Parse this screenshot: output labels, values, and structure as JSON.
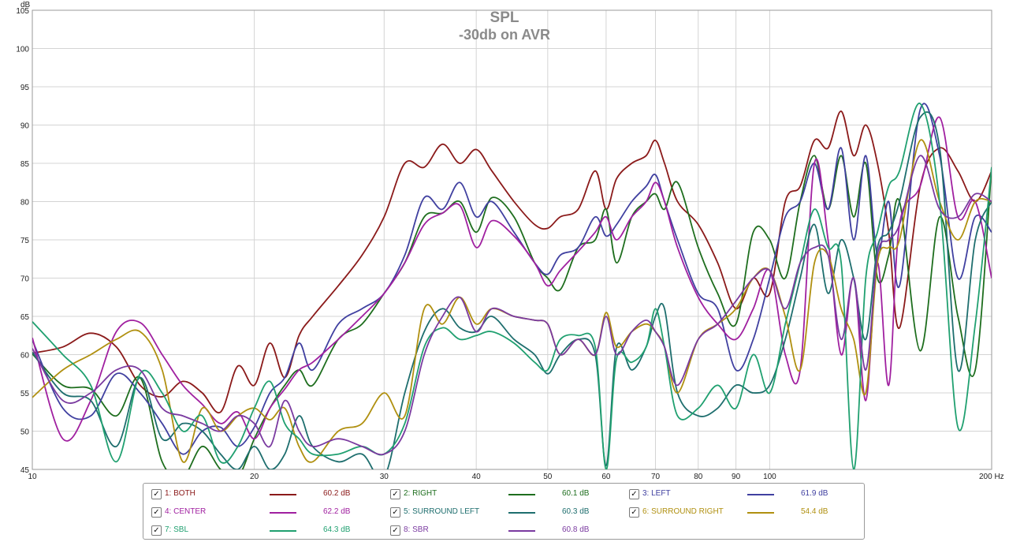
{
  "chart_data": {
    "type": "line",
    "title": "SPL",
    "subtitle": "-30db on AVR",
    "ylabel": "dB",
    "xlabel": "Hz",
    "x_scale": "log",
    "xlim": [
      10,
      200
    ],
    "ylim": [
      45,
      105
    ],
    "grid": true,
    "x_ticks": [
      10,
      20,
      30,
      40,
      50,
      60,
      70,
      80,
      90,
      100,
      200
    ],
    "x_tick_labels": [
      "10",
      "20",
      "30",
      "40",
      "50",
      "60",
      "70",
      "80",
      "90",
      "100",
      "200 Hz"
    ],
    "y_ticks": [
      45,
      50,
      55,
      60,
      65,
      70,
      75,
      80,
      85,
      90,
      95,
      100,
      105
    ],
    "legend_position": "bottom",
    "series": [
      {
        "name": "1: BOTH",
        "color": "#8b1a1a",
        "legend_value": "60.2 dB",
        "x": [
          10,
          11,
          12,
          13,
          14,
          15,
          16,
          17,
          18,
          19,
          20,
          21,
          22,
          23,
          24,
          26,
          28,
          30,
          32,
          34,
          36,
          38,
          40,
          42,
          45,
          48,
          50,
          52,
          55,
          58,
          60,
          62,
          65,
          68,
          70,
          72,
          75,
          80,
          85,
          90,
          95,
          100,
          105,
          110,
          115,
          120,
          125,
          130,
          135,
          140,
          145,
          150,
          160,
          170,
          180,
          190,
          200
        ],
        "y": [
          60.2,
          61,
          62.8,
          61,
          56,
          54.5,
          56.5,
          55,
          52.5,
          58.5,
          56,
          61.5,
          57,
          62.5,
          65,
          69,
          73,
          78,
          85,
          84.5,
          87.5,
          85,
          86.8,
          84,
          80,
          77,
          76.5,
          78,
          79,
          84,
          79,
          83,
          85,
          86,
          88,
          85,
          80,
          77,
          72,
          66,
          70,
          68,
          80,
          82,
          88,
          87,
          91.8,
          86,
          90,
          85,
          76,
          63.5,
          82,
          87,
          84,
          80,
          84
        ]
      },
      {
        "name": "2: RIGHT",
        "color": "#1e6e1e",
        "legend_value": "60.1 dB",
        "x": [
          10,
          11,
          12,
          13,
          14,
          15,
          16,
          17,
          18,
          19,
          20,
          21,
          22,
          23,
          24,
          26,
          28,
          30,
          32,
          34,
          36,
          38,
          40,
          42,
          45,
          48,
          50,
          52,
          55,
          58,
          60,
          62,
          65,
          68,
          70,
          72,
          75,
          80,
          85,
          90,
          95,
          100,
          105,
          110,
          115,
          120,
          125,
          130,
          135,
          140,
          145,
          150,
          160,
          170,
          180,
          190,
          200
        ],
        "y": [
          60.1,
          56,
          55.5,
          52,
          57,
          46,
          44,
          48,
          45,
          44,
          49,
          53,
          56,
          58,
          56,
          62,
          64,
          68,
          72,
          78,
          78.5,
          80,
          76,
          80.5,
          78,
          72,
          70,
          68.5,
          74,
          75,
          79,
          72,
          78,
          80,
          81,
          79,
          82.5,
          74,
          68,
          64,
          76,
          75,
          70,
          80,
          86,
          79,
          86,
          78,
          85,
          70,
          73,
          80,
          60.5,
          78,
          65,
          58,
          84.5
        ]
      },
      {
        "name": "3: LEFT",
        "color": "#4040a0",
        "legend_value": "61.9 dB",
        "x": [
          10,
          11,
          12,
          13,
          14,
          15,
          16,
          17,
          18,
          19,
          20,
          21,
          22,
          23,
          24,
          26,
          28,
          30,
          32,
          34,
          36,
          38,
          40,
          42,
          45,
          48,
          50,
          52,
          55,
          58,
          60,
          62,
          65,
          68,
          70,
          72,
          75,
          80,
          85,
          90,
          95,
          100,
          105,
          110,
          115,
          120,
          125,
          130,
          135,
          140,
          145,
          150,
          160,
          170,
          180,
          190,
          200
        ],
        "y": [
          61.9,
          53,
          52,
          57.5,
          55,
          51,
          47,
          50,
          50.5,
          48,
          50.5,
          55,
          57,
          61.5,
          58,
          64,
          66,
          68,
          73,
          80.5,
          79,
          82.5,
          78,
          80,
          76,
          72,
          70.5,
          73,
          74,
          78,
          75.5,
          77,
          80,
          82,
          83.5,
          80,
          75,
          68,
          66,
          58,
          62,
          70,
          78,
          80,
          85,
          79,
          87,
          75,
          86,
          73,
          80,
          69,
          92,
          86,
          70,
          78,
          76
        ]
      },
      {
        "name": "4: CENTER",
        "color": "#a020a0",
        "legend_value": "62.2 dB",
        "x": [
          10,
          11,
          12,
          13,
          14,
          15,
          16,
          17,
          18,
          19,
          20,
          21,
          22,
          23,
          24,
          26,
          28,
          30,
          32,
          34,
          36,
          38,
          40,
          42,
          45,
          48,
          50,
          52,
          55,
          58,
          60,
          62,
          65,
          68,
          70,
          72,
          75,
          80,
          85,
          90,
          95,
          100,
          105,
          110,
          115,
          120,
          125,
          130,
          135,
          140,
          145,
          150,
          160,
          170,
          180,
          190,
          200
        ],
        "y": [
          62.2,
          49,
          54,
          63,
          64.2,
          60,
          56,
          53.5,
          51,
          52.5,
          49,
          53,
          55.5,
          58,
          59,
          62,
          65,
          68,
          72,
          77,
          78.5,
          79.5,
          74,
          77.5,
          75.5,
          72,
          69,
          71,
          73.5,
          76,
          78,
          75,
          78,
          80,
          82.5,
          80,
          74,
          67.5,
          64,
          62,
          66,
          71,
          60,
          58,
          85,
          75,
          60,
          70,
          54,
          72,
          56,
          77,
          82,
          91,
          78,
          80,
          70
        ]
      },
      {
        "name": "5: SURROUND LEFT",
        "color": "#1e6e6e",
        "legend_value": "60.3 dB",
        "x": [
          10,
          11,
          12,
          13,
          14,
          15,
          16,
          17,
          18,
          19,
          20,
          21,
          22,
          23,
          24,
          26,
          28,
          30,
          32,
          34,
          36,
          38,
          40,
          42,
          45,
          48,
          50,
          52,
          55,
          58,
          60,
          62,
          65,
          68,
          70,
          72,
          75,
          80,
          85,
          90,
          95,
          100,
          105,
          110,
          115,
          120,
          125,
          130,
          135,
          140,
          145,
          150,
          160,
          170,
          180,
          190,
          200
        ],
        "y": [
          60.3,
          55,
          54,
          48,
          57,
          49,
          51,
          50,
          47,
          45,
          48,
          45,
          47,
          52,
          48,
          46,
          47,
          44,
          55,
          63,
          66,
          63.5,
          63,
          65,
          62,
          60,
          57.5,
          60,
          62,
          60,
          45.5,
          61,
          58,
          61,
          65,
          66,
          55,
          52,
          53,
          56,
          55,
          56,
          62,
          70,
          77,
          68,
          75,
          70,
          62,
          74,
          76,
          80,
          91,
          87,
          58,
          75,
          80
        ]
      },
      {
        "name": "6: SURROUND RIGHT",
        "color": "#b09010",
        "legend_value": "54.4 dB",
        "x": [
          10,
          11,
          12,
          13,
          14,
          15,
          16,
          17,
          18,
          19,
          20,
          21,
          22,
          23,
          24,
          26,
          28,
          30,
          32,
          34,
          36,
          38,
          40,
          42,
          45,
          48,
          50,
          52,
          55,
          58,
          60,
          62,
          65,
          68,
          70,
          72,
          75,
          80,
          85,
          90,
          95,
          100,
          105,
          110,
          115,
          120,
          125,
          130,
          135,
          140,
          145,
          150,
          160,
          170,
          180,
          190,
          200
        ],
        "y": [
          54.4,
          58,
          60,
          62,
          63,
          58,
          46,
          53,
          50,
          52,
          53,
          51.5,
          53,
          48,
          46,
          50,
          51,
          55,
          52,
          66,
          64,
          67.5,
          64,
          66,
          65,
          64.5,
          64,
          60,
          62,
          60,
          65.5,
          61,
          63,
          64,
          63,
          61,
          55,
          62,
          64,
          66,
          70,
          71,
          65,
          58,
          72,
          73,
          66,
          62,
          55,
          72,
          74,
          75,
          88,
          80,
          75,
          80,
          80
        ]
      },
      {
        "name": "7: SBL",
        "color": "#20a070",
        "legend_value": "64.3 dB",
        "x": [
          10,
          11,
          12,
          13,
          14,
          15,
          16,
          17,
          18,
          19,
          20,
          21,
          22,
          23,
          24,
          26,
          28,
          30,
          32,
          34,
          36,
          38,
          40,
          42,
          45,
          48,
          50,
          52,
          55,
          58,
          60,
          62,
          65,
          68,
          70,
          72,
          75,
          80,
          85,
          90,
          95,
          100,
          105,
          110,
          115,
          120,
          125,
          130,
          135,
          140,
          145,
          150,
          160,
          170,
          180,
          190,
          200
        ],
        "y": [
          64.3,
          60,
          56,
          46,
          57.5,
          55,
          50,
          52,
          46,
          48,
          53,
          56.5,
          51,
          49,
          47,
          47,
          48,
          47,
          51,
          61,
          63.5,
          62,
          62.5,
          63,
          61.5,
          59,
          58,
          62,
          62.5,
          61,
          45,
          59.5,
          59,
          61,
          66,
          61,
          52,
          53,
          56,
          53,
          60,
          55,
          64,
          72,
          79,
          74,
          72,
          45,
          70,
          76,
          82,
          84,
          92.8,
          80,
          50.5,
          64,
          84.5
        ]
      },
      {
        "name": "8: SBR",
        "color": "#7a3aa0",
        "legend_value": "60.8 dB",
        "x": [
          10,
          11,
          12,
          13,
          14,
          15,
          16,
          17,
          18,
          19,
          20,
          21,
          22,
          23,
          24,
          26,
          28,
          30,
          32,
          34,
          36,
          38,
          40,
          42,
          45,
          48,
          50,
          52,
          55,
          58,
          60,
          62,
          65,
          68,
          70,
          72,
          75,
          80,
          85,
          90,
          95,
          100,
          105,
          110,
          115,
          120,
          125,
          130,
          135,
          140,
          145,
          150,
          160,
          170,
          180,
          190,
          200
        ],
        "y": [
          60.8,
          54,
          55,
          58,
          58,
          53,
          52,
          51,
          50,
          52,
          51,
          48,
          54,
          50,
          48,
          49,
          48,
          47,
          50,
          60,
          65,
          67.5,
          63,
          66,
          65,
          64.5,
          64,
          60,
          62,
          60,
          65,
          60,
          63,
          64.5,
          63,
          61,
          56,
          62,
          64,
          67,
          70,
          71,
          66,
          72,
          74,
          73,
          62,
          70,
          58,
          73,
          75,
          77,
          86,
          79,
          78,
          81,
          80
        ]
      }
    ]
  }
}
